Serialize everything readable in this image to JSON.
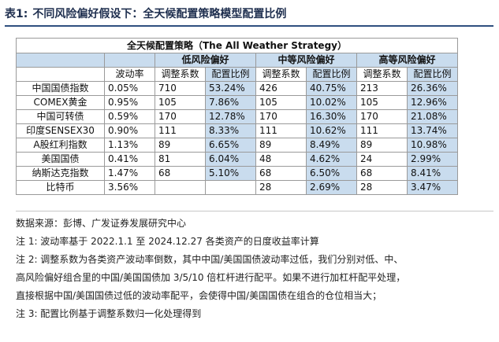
{
  "header": {
    "table_no": "表1:",
    "title": "不同风险偏好假设下：全天候配置策略模型配置比例"
  },
  "table": {
    "banner": "全天候配置策略（The All Weather Strategy）",
    "groups": [
      "低风险偏好",
      "中等风险偏好",
      "高等风险偏好"
    ],
    "col_headers": [
      "波动率",
      "调整系数",
      "配置比例",
      "调整系数",
      "配置比例",
      "调整系数",
      "配置比例"
    ],
    "rows": [
      {
        "asset": "中国国债指数",
        "vol": "0.05%",
        "low_coef": "710",
        "low_ratio": "53.24%",
        "mid_coef": "426",
        "mid_ratio": "40.75%",
        "high_coef": "213",
        "high_ratio": "26.36%"
      },
      {
        "asset": "COMEX黄金",
        "vol": "0.95%",
        "low_coef": "105",
        "low_ratio": "7.86%",
        "mid_coef": "105",
        "mid_ratio": "10.02%",
        "high_coef": "105",
        "high_ratio": "12.96%"
      },
      {
        "asset": "中国可转债",
        "vol": "0.59%",
        "low_coef": "170",
        "low_ratio": "12.78%",
        "mid_coef": "170",
        "mid_ratio": "16.30%",
        "high_coef": "170",
        "high_ratio": "21.08%"
      },
      {
        "asset": "印度SENSEX30",
        "vol": "0.90%",
        "low_coef": "111",
        "low_ratio": "8.33%",
        "mid_coef": "111",
        "mid_ratio": "10.62%",
        "high_coef": "111",
        "high_ratio": "13.74%"
      },
      {
        "asset": "A股红利指数",
        "vol": "1.13%",
        "low_coef": "89",
        "low_ratio": "6.65%",
        "mid_coef": "89",
        "mid_ratio": "8.49%",
        "high_coef": "89",
        "high_ratio": "10.98%"
      },
      {
        "asset": "美国国债",
        "vol": "0.41%",
        "low_coef": "81",
        "low_ratio": "6.04%",
        "mid_coef": "48",
        "mid_ratio": "4.62%",
        "high_coef": "24",
        "high_ratio": "2.99%"
      },
      {
        "asset": "纳斯达克指数",
        "vol": "1.47%",
        "low_coef": "68",
        "low_ratio": "5.10%",
        "mid_coef": "68",
        "mid_ratio": "6.50%",
        "high_coef": "68",
        "high_ratio": "8.41%"
      },
      {
        "asset": "比特币",
        "vol": "3.56%",
        "low_coef": "",
        "low_ratio": "",
        "mid_coef": "28",
        "mid_ratio": "2.69%",
        "high_coef": "28",
        "high_ratio": "3.47%"
      }
    ]
  },
  "notes": {
    "source": "数据来源：彭博、广发证券发展研究中心",
    "note1": "注 1:  波动率基于 2022.1.1 至 2024.12.27 各类资产的日度收益率计算",
    "note2_line1": "注 2:  调整系数为各类资产波动率倒数，其中中国/美国国债波动率过低，我们分别对低、中、",
    "note2_line2": "高风险偏好组合里的中国/美国国债加 3/5/10 倍杠杆进行配平。如果不进行加杠杆配平处理，",
    "note2_line3": "直接根据中国/美国国债过低的波动率配平，会使得中国/美国国债在组合的仓位相当大；",
    "note3": "注 3:  配置比例基于调整系数归一化处理得到"
  },
  "colors": {
    "header_fill": "#c9dcee",
    "title_rule": "#2f4f7f"
  }
}
